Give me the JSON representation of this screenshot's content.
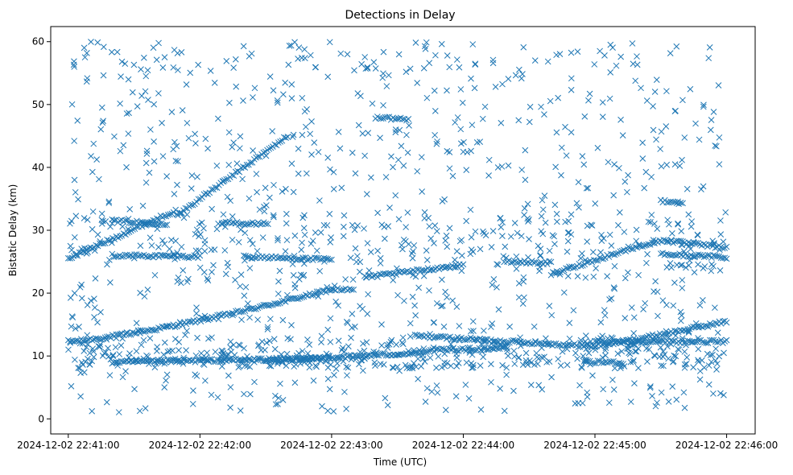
{
  "chart_data": {
    "type": "scatter",
    "title": "Detections in Delay",
    "xlabel": "Time (UTC)",
    "ylabel": "Bistatic Delay (km)",
    "marker": "x",
    "color": "#1f77b4",
    "grid": false,
    "legend": "none",
    "x_is_datetime": true,
    "xlim": [
      "2024-12-02 22:40:52",
      "2024-12-02 22:46:13"
    ],
    "ylim": [
      -2.4,
      62.4
    ],
    "xticks": [
      "2024-12-02 22:41:00",
      "2024-12-02 22:42:00",
      "2024-12-02 22:43:00",
      "2024-12-02 22:44:00",
      "2024-12-02 22:45:00",
      "2024-12-02 22:46:00"
    ],
    "yticks": [
      "0",
      "10",
      "20",
      "30",
      "40",
      "50",
      "60"
    ],
    "tracks": [
      {
        "from": "2024-12-02 22:41:00",
        "to": "2024-12-02 22:43:00",
        "delay_start": 12.3,
        "delay_end": 20.6,
        "curve": 1.3
      },
      {
        "from": "2024-12-02 22:43:00",
        "to": "2024-12-02 22:43:10",
        "delay_start": 20.6,
        "delay_end": 20.5,
        "curve": 1
      },
      {
        "from": "2024-12-02 22:43:38",
        "to": "2024-12-02 22:45:00",
        "delay_start": 13.2,
        "delay_end": 11.5,
        "curve": 1
      },
      {
        "from": "2024-12-02 22:45:00",
        "to": "2024-12-02 22:46:00",
        "delay_start": 11.6,
        "delay_end": 15.5,
        "curve": 1.1
      },
      {
        "from": "2024-12-02 22:41:00",
        "to": "2024-12-02 22:41:48",
        "delay_start": 25.5,
        "delay_end": 33.0,
        "curve": 1
      },
      {
        "from": "2024-12-02 22:41:20",
        "to": "2024-12-02 22:41:45",
        "delay_start": 31.5,
        "delay_end": 31.0,
        "curve": 1
      },
      {
        "from": "2024-12-02 22:41:20",
        "to": "2024-12-02 22:42:00",
        "delay_start": 26.0,
        "delay_end": 25.8,
        "curve": 1
      },
      {
        "from": "2024-12-02 22:41:50",
        "to": "2024-12-02 22:42:40",
        "delay_start": 32.5,
        "delay_end": 45.0,
        "curve": 1
      },
      {
        "from": "2024-12-02 22:42:20",
        "to": "2024-12-02 22:43:00",
        "delay_start": 25.8,
        "delay_end": 25.3,
        "curve": 1
      },
      {
        "from": "2024-12-02 22:42:10",
        "to": "2024-12-02 22:42:30",
        "delay_start": 31.2,
        "delay_end": 31.0,
        "curve": 1
      },
      {
        "from": "2024-12-02 22:41:20",
        "to": "2024-12-02 22:42:55",
        "delay_start": 9.0,
        "delay_end": 9.6,
        "curve": 1
      },
      {
        "from": "2024-12-02 22:42:30",
        "to": "2024-12-02 22:43:40",
        "delay_start": 9.2,
        "delay_end": 10.5,
        "curve": 1
      },
      {
        "from": "2024-12-02 22:43:15",
        "to": "2024-12-02 22:44:00",
        "delay_start": 22.5,
        "delay_end": 24.5,
        "curve": 1
      },
      {
        "from": "2024-12-02 22:43:20",
        "to": "2024-12-02 22:43:35",
        "delay_start": 48.0,
        "delay_end": 47.6,
        "curve": 1
      },
      {
        "from": "2024-12-02 22:43:40",
        "to": "2024-12-02 22:44:20",
        "delay_start": 10.8,
        "delay_end": 11.3,
        "curve": 1
      },
      {
        "from": "2024-12-02 22:44:20",
        "to": "2024-12-02 22:44:40",
        "delay_start": 25.0,
        "delay_end": 24.8,
        "curve": 1
      },
      {
        "from": "2024-12-02 22:44:40",
        "to": "2024-12-02 22:45:20",
        "delay_start": 23.0,
        "delay_end": 27.5,
        "curve": 1
      },
      {
        "from": "2024-12-02 22:45:20",
        "to": "2024-12-02 22:45:33",
        "delay_start": 27.5,
        "delay_end": 28.5,
        "curve": 1
      },
      {
        "from": "2024-12-02 22:45:33",
        "to": "2024-12-02 22:46:00",
        "delay_start": 28.3,
        "delay_end": 27.2,
        "curve": 1
      },
      {
        "from": "2024-12-02 22:45:30",
        "to": "2024-12-02 22:46:00",
        "delay_start": 26.2,
        "delay_end": 25.7,
        "curve": 1
      },
      {
        "from": "2024-12-02 22:45:00",
        "to": "2024-12-02 22:46:00",
        "delay_start": 12.3,
        "delay_end": 12.3,
        "curve": 1
      },
      {
        "from": "2024-12-02 22:44:55",
        "to": "2024-12-02 22:45:12",
        "delay_start": 9.0,
        "delay_end": 9.0,
        "curve": 1
      },
      {
        "from": "2024-12-02 22:45:30",
        "to": "2024-12-02 22:45:40",
        "delay_start": 34.7,
        "delay_end": 34.3,
        "curve": 1
      }
    ],
    "scatter_range": {
      "from": "2024-12-02 22:41:00",
      "to": "2024-12-02 22:46:00",
      "delay_min": 1,
      "delay_max": 60
    }
  }
}
